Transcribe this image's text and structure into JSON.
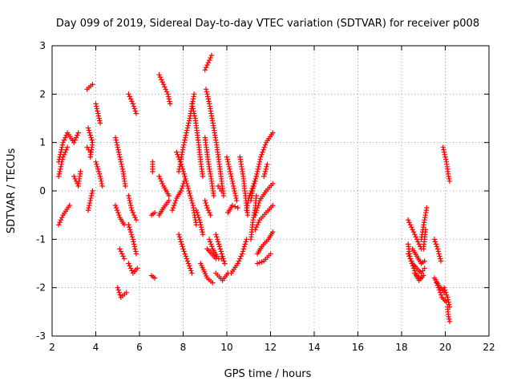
{
  "chart_data": {
    "type": "scatter",
    "title": "Day 099 of 2019, Sidereal Day-to-day VTEC variation (SDTVAR) for receiver p008",
    "xlabel": "GPS time / hours",
    "ylabel": "SDTVAR / TECUs",
    "xlim": [
      2,
      22
    ],
    "ylim": [
      -3,
      3
    ],
    "xticks": [
      "2",
      "4",
      "6",
      "8",
      "10",
      "12",
      "14",
      "16",
      "18",
      "20",
      "22"
    ],
    "yticks": [
      "-3",
      "-2",
      "-1",
      "0",
      "1",
      "2",
      "3"
    ],
    "grid": true,
    "marker": "+",
    "series_color": "#ff0000",
    "tracks": [
      [
        [
          2.3,
          0.6
        ],
        [
          2.5,
          1.0
        ],
        [
          2.7,
          1.2
        ],
        [
          3.0,
          1.0
        ],
        [
          3.2,
          1.2
        ]
      ],
      [
        [
          2.3,
          0.3
        ],
        [
          2.5,
          0.7
        ],
        [
          2.7,
          0.9
        ]
      ],
      [
        [
          2.3,
          -0.7
        ],
        [
          2.5,
          -0.5
        ],
        [
          2.8,
          -0.3
        ]
      ],
      [
        [
          3.0,
          0.3
        ],
        [
          3.2,
          0.1
        ],
        [
          3.3,
          0.4
        ]
      ],
      [
        [
          3.6,
          2.1
        ],
        [
          3.85,
          2.2
        ]
      ],
      [
        [
          3.65,
          1.3
        ],
        [
          3.85,
          1.0
        ],
        [
          3.75,
          0.7
        ]
      ],
      [
        [
          3.6,
          0.9
        ],
        [
          3.75,
          0.8
        ]
      ],
      [
        [
          3.65,
          -0.4
        ],
        [
          3.75,
          -0.2
        ],
        [
          3.85,
          0
        ]
      ],
      [
        [
          4.0,
          1.8
        ],
        [
          4.2,
          1.4
        ]
      ],
      [
        [
          4.0,
          0.6
        ],
        [
          4.2,
          0.3
        ],
        [
          4.3,
          0.1
        ]
      ],
      [
        [
          4.9,
          1.1
        ],
        [
          5.1,
          0.7
        ],
        [
          5.25,
          0.4
        ],
        [
          5.35,
          0.1
        ]
      ],
      [
        [
          4.9,
          -0.3
        ],
        [
          5.1,
          -0.55
        ],
        [
          5.3,
          -0.7
        ]
      ],
      [
        [
          5.5,
          2.0
        ],
        [
          5.7,
          1.8
        ],
        [
          5.85,
          1.6
        ]
      ],
      [
        [
          5.5,
          -0.1
        ],
        [
          5.65,
          -0.4
        ],
        [
          5.85,
          -0.6
        ]
      ],
      [
        [
          5.5,
          -0.7
        ],
        [
          5.7,
          -1.0
        ],
        [
          5.85,
          -1.3
        ]
      ],
      [
        [
          5.1,
          -1.2
        ],
        [
          5.3,
          -1.4
        ]
      ],
      [
        [
          5.5,
          -1.5
        ],
        [
          5.7,
          -1.7
        ],
        [
          5.9,
          -1.6
        ]
      ],
      [
        [
          5.0,
          -2.0
        ],
        [
          5.15,
          -2.2
        ],
        [
          5.4,
          -2.1
        ]
      ],
      [
        [
          6.6,
          0.6
        ],
        [
          6.6,
          0.4
        ]
      ],
      [
        [
          6.55,
          -0.5
        ],
        [
          6.7,
          -0.45
        ]
      ],
      [
        [
          6.55,
          -1.75
        ],
        [
          6.7,
          -1.8
        ]
      ],
      [
        [
          6.9,
          2.4
        ],
        [
          7.1,
          2.2
        ],
        [
          7.3,
          2.0
        ],
        [
          7.4,
          1.8
        ]
      ],
      [
        [
          6.9,
          0.3
        ],
        [
          7.1,
          0.1
        ],
        [
          7.35,
          -0.1
        ]
      ],
      [
        [
          6.9,
          -0.5
        ],
        [
          7.1,
          -0.35
        ],
        [
          7.35,
          -0.2
        ]
      ],
      [
        [
          7.5,
          -0.4
        ],
        [
          7.7,
          -0.15
        ],
        [
          7.9,
          0
        ],
        [
          8.05,
          0.2
        ]
      ],
      [
        [
          7.8,
          0.4
        ],
        [
          8.0,
          0.9
        ],
        [
          8.15,
          1.2
        ],
        [
          8.3,
          1.5
        ],
        [
          8.5,
          2.0
        ]
      ],
      [
        [
          7.7,
          0.8
        ],
        [
          7.95,
          0.5
        ],
        [
          8.2,
          0.1
        ],
        [
          8.45,
          -0.3
        ],
        [
          8.6,
          -0.7
        ]
      ],
      [
        [
          7.8,
          -0.9
        ],
        [
          8.0,
          -1.2
        ],
        [
          8.2,
          -1.45
        ],
        [
          8.4,
          -1.7
        ]
      ],
      [
        [
          8.4,
          1.8
        ],
        [
          8.55,
          1.5
        ],
        [
          8.7,
          1.0
        ],
        [
          8.8,
          0.6
        ],
        [
          8.9,
          0.3
        ]
      ],
      [
        [
          8.6,
          -0.4
        ],
        [
          8.75,
          -0.6
        ],
        [
          8.9,
          -0.9
        ]
      ],
      [
        [
          9.0,
          -0.2
        ],
        [
          9.1,
          -0.35
        ],
        [
          9.25,
          -0.5
        ]
      ],
      [
        [
          9.0,
          1.1
        ],
        [
          9.15,
          0.6
        ],
        [
          9.3,
          0.2
        ],
        [
          9.4,
          -0.1
        ]
      ],
      [
        [
          9.05,
          2.1
        ],
        [
          9.2,
          1.8
        ],
        [
          9.4,
          1.3
        ],
        [
          9.55,
          0.9
        ],
        [
          9.7,
          0.4
        ],
        [
          9.85,
          -0.1
        ]
      ],
      [
        [
          9.0,
          2.5
        ],
        [
          9.15,
          2.65
        ],
        [
          9.3,
          2.8
        ]
      ],
      [
        [
          9.6,
          0.1
        ],
        [
          9.75,
          0
        ]
      ],
      [
        [
          9.1,
          -1.2
        ],
        [
          9.3,
          -1.3
        ],
        [
          9.5,
          -1.4
        ],
        [
          9.75,
          -1.4
        ]
      ],
      [
        [
          9.2,
          -1.0
        ],
        [
          9.35,
          -1.2
        ],
        [
          9.55,
          -1.35
        ]
      ],
      [
        [
          8.8,
          -1.5
        ],
        [
          9.1,
          -1.8
        ],
        [
          9.35,
          -1.9
        ]
      ],
      [
        [
          9.5,
          -1.7
        ],
        [
          9.8,
          -1.85
        ],
        [
          10.05,
          -1.7
        ]
      ],
      [
        [
          9.5,
          -0.9
        ],
        [
          9.7,
          -1.2
        ],
        [
          9.9,
          -1.5
        ]
      ],
      [
        [
          10.0,
          0.7
        ],
        [
          10.15,
          0.4
        ],
        [
          10.3,
          0.1
        ],
        [
          10.45,
          -0.2
        ]
      ],
      [
        [
          10.05,
          -0.45
        ],
        [
          10.25,
          -0.3
        ],
        [
          10.5,
          -0.35
        ]
      ],
      [
        [
          10.2,
          -1.7
        ],
        [
          10.5,
          -1.5
        ],
        [
          10.7,
          -1.3
        ],
        [
          10.9,
          -1.0
        ]
      ],
      [
        [
          10.6,
          0.7
        ],
        [
          10.75,
          0.3
        ],
        [
          10.85,
          -0.1
        ],
        [
          10.95,
          -0.5
        ]
      ],
      [
        [
          10.9,
          -0.4
        ],
        [
          11.0,
          -0.15
        ],
        [
          11.2,
          0.1
        ],
        [
          11.35,
          0.3
        ]
      ],
      [
        [
          11.1,
          -0.2
        ],
        [
          11.2,
          0.05
        ],
        [
          11.3,
          0.2
        ]
      ],
      [
        [
          11.1,
          -1.0
        ],
        [
          11.2,
          -0.6
        ],
        [
          11.3,
          -0.35
        ],
        [
          11.35,
          -0.1
        ]
      ],
      [
        [
          11.3,
          0.2
        ],
        [
          11.55,
          0.7
        ],
        [
          11.8,
          1.0
        ],
        [
          12.1,
          1.2
        ]
      ],
      [
        [
          11.3,
          -0.5
        ],
        [
          11.5,
          -0.2
        ],
        [
          11.8,
          0
        ],
        [
          12.1,
          0.15
        ]
      ],
      [
        [
          11.3,
          -0.8
        ],
        [
          11.5,
          -0.6
        ],
        [
          11.8,
          -0.45
        ],
        [
          12.1,
          -0.3
        ]
      ],
      [
        [
          11.4,
          -1.3
        ],
        [
          11.6,
          -1.15
        ],
        [
          11.9,
          -1.0
        ],
        [
          12.1,
          -0.85
        ]
      ],
      [
        [
          11.4,
          -1.5
        ],
        [
          11.7,
          -1.45
        ],
        [
          12.0,
          -1.3
        ]
      ],
      [
        [
          11.7,
          0.3
        ],
        [
          11.85,
          0.55
        ]
      ],
      [
        [
          18.3,
          -0.6
        ],
        [
          18.5,
          -0.8
        ],
        [
          18.7,
          -1.0
        ],
        [
          18.9,
          -1.2
        ]
      ],
      [
        [
          18.3,
          -1.1
        ],
        [
          18.4,
          -1.4
        ],
        [
          18.55,
          -1.6
        ],
        [
          18.7,
          -1.75
        ],
        [
          18.85,
          -1.8
        ]
      ],
      [
        [
          18.3,
          -1.3
        ],
        [
          18.5,
          -1.5
        ],
        [
          18.7,
          -1.6
        ],
        [
          18.9,
          -1.7
        ],
        [
          19.05,
          -1.6
        ]
      ],
      [
        [
          18.5,
          -1.2
        ],
        [
          18.7,
          -1.35
        ],
        [
          18.9,
          -1.5
        ],
        [
          19.05,
          -1.45
        ]
      ],
      [
        [
          18.6,
          -1.7
        ],
        [
          18.8,
          -1.85
        ],
        [
          19.0,
          -1.75
        ]
      ],
      [
        [
          18.9,
          -1.0
        ],
        [
          19.05,
          -0.6
        ],
        [
          19.15,
          -0.35
        ]
      ],
      [
        [
          19.0,
          -1.2
        ],
        [
          19.1,
          -0.8
        ]
      ],
      [
        [
          19.5,
          -1.0
        ],
        [
          19.65,
          -1.2
        ],
        [
          19.8,
          -1.45
        ]
      ],
      [
        [
          19.5,
          -1.8
        ],
        [
          19.7,
          -1.95
        ],
        [
          19.95,
          -2.1
        ]
      ],
      [
        [
          19.6,
          -1.9
        ],
        [
          19.85,
          -2.2
        ],
        [
          20.05,
          -2.3
        ]
      ],
      [
        [
          19.95,
          -2.0
        ],
        [
          20.1,
          -2.2
        ],
        [
          20.2,
          -2.4
        ]
      ],
      [
        [
          20.1,
          -2.4
        ],
        [
          20.15,
          -2.6
        ],
        [
          20.2,
          -2.7
        ]
      ],
      [
        [
          19.9,
          0.9
        ],
        [
          20.05,
          0.6
        ],
        [
          20.15,
          0.3
        ],
        [
          20.2,
          0.2
        ]
      ]
    ]
  }
}
